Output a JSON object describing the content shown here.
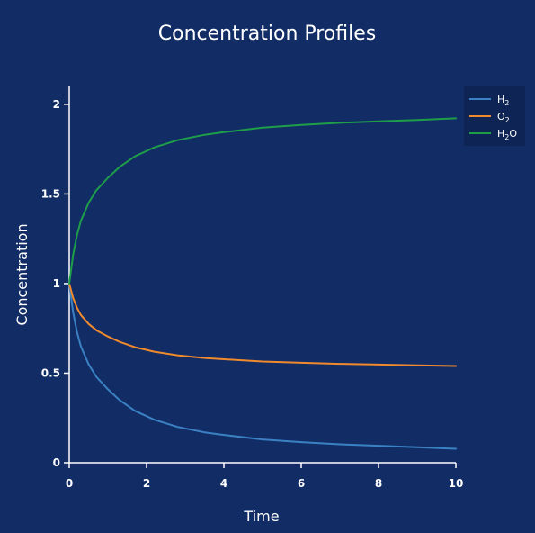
{
  "chart_data": {
    "type": "line",
    "title": "Concentration Profiles",
    "xlabel": "Time",
    "ylabel": "Concentration",
    "xlim": [
      0,
      10
    ],
    "ylim": [
      0,
      2.1
    ],
    "x_ticks": [
      {
        "value": 0,
        "label": "0"
      },
      {
        "value": 2,
        "label": "2"
      },
      {
        "value": 4,
        "label": "4"
      },
      {
        "value": 6,
        "label": "6"
      },
      {
        "value": 8,
        "label": "8"
      },
      {
        "value": 10,
        "label": "10"
      }
    ],
    "y_ticks": [
      {
        "value": 0,
        "label": "0"
      },
      {
        "value": 0.5,
        "label": "0.5"
      },
      {
        "value": 1,
        "label": "1"
      },
      {
        "value": 1.5,
        "label": "1.5"
      },
      {
        "value": 2,
        "label": "2"
      }
    ],
    "grid": false,
    "legend_position": "top-right",
    "x": [
      0,
      0.1,
      0.2,
      0.3,
      0.5,
      0.7,
      1.0,
      1.3,
      1.7,
      2.2,
      2.8,
      3.5,
      4.0,
      5.0,
      6.0,
      7.0,
      8.0,
      9.0,
      10.0
    ],
    "series": [
      {
        "name": "H",
        "name_sub": "2",
        "color": "#3b82c4",
        "values": [
          1.0,
          0.84,
          0.73,
          0.65,
          0.55,
          0.48,
          0.41,
          0.35,
          0.29,
          0.24,
          0.2,
          0.17,
          0.155,
          0.13,
          0.115,
          0.103,
          0.095,
          0.087,
          0.078
        ]
      },
      {
        "name": "O",
        "name_sub": "2",
        "color": "#f08a2c",
        "values": [
          1.0,
          0.92,
          0.865,
          0.825,
          0.775,
          0.74,
          0.705,
          0.675,
          0.645,
          0.62,
          0.6,
          0.585,
          0.578,
          0.565,
          0.558,
          0.552,
          0.548,
          0.544,
          0.54
        ]
      },
      {
        "name": "H",
        "name_sub": "2",
        "name_suffix": "O",
        "color": "#1f9e48",
        "values": [
          1.0,
          1.16,
          1.27,
          1.35,
          1.45,
          1.52,
          1.59,
          1.65,
          1.71,
          1.76,
          1.8,
          1.83,
          1.845,
          1.87,
          1.885,
          1.897,
          1.905,
          1.913,
          1.922
        ]
      }
    ]
  }
}
